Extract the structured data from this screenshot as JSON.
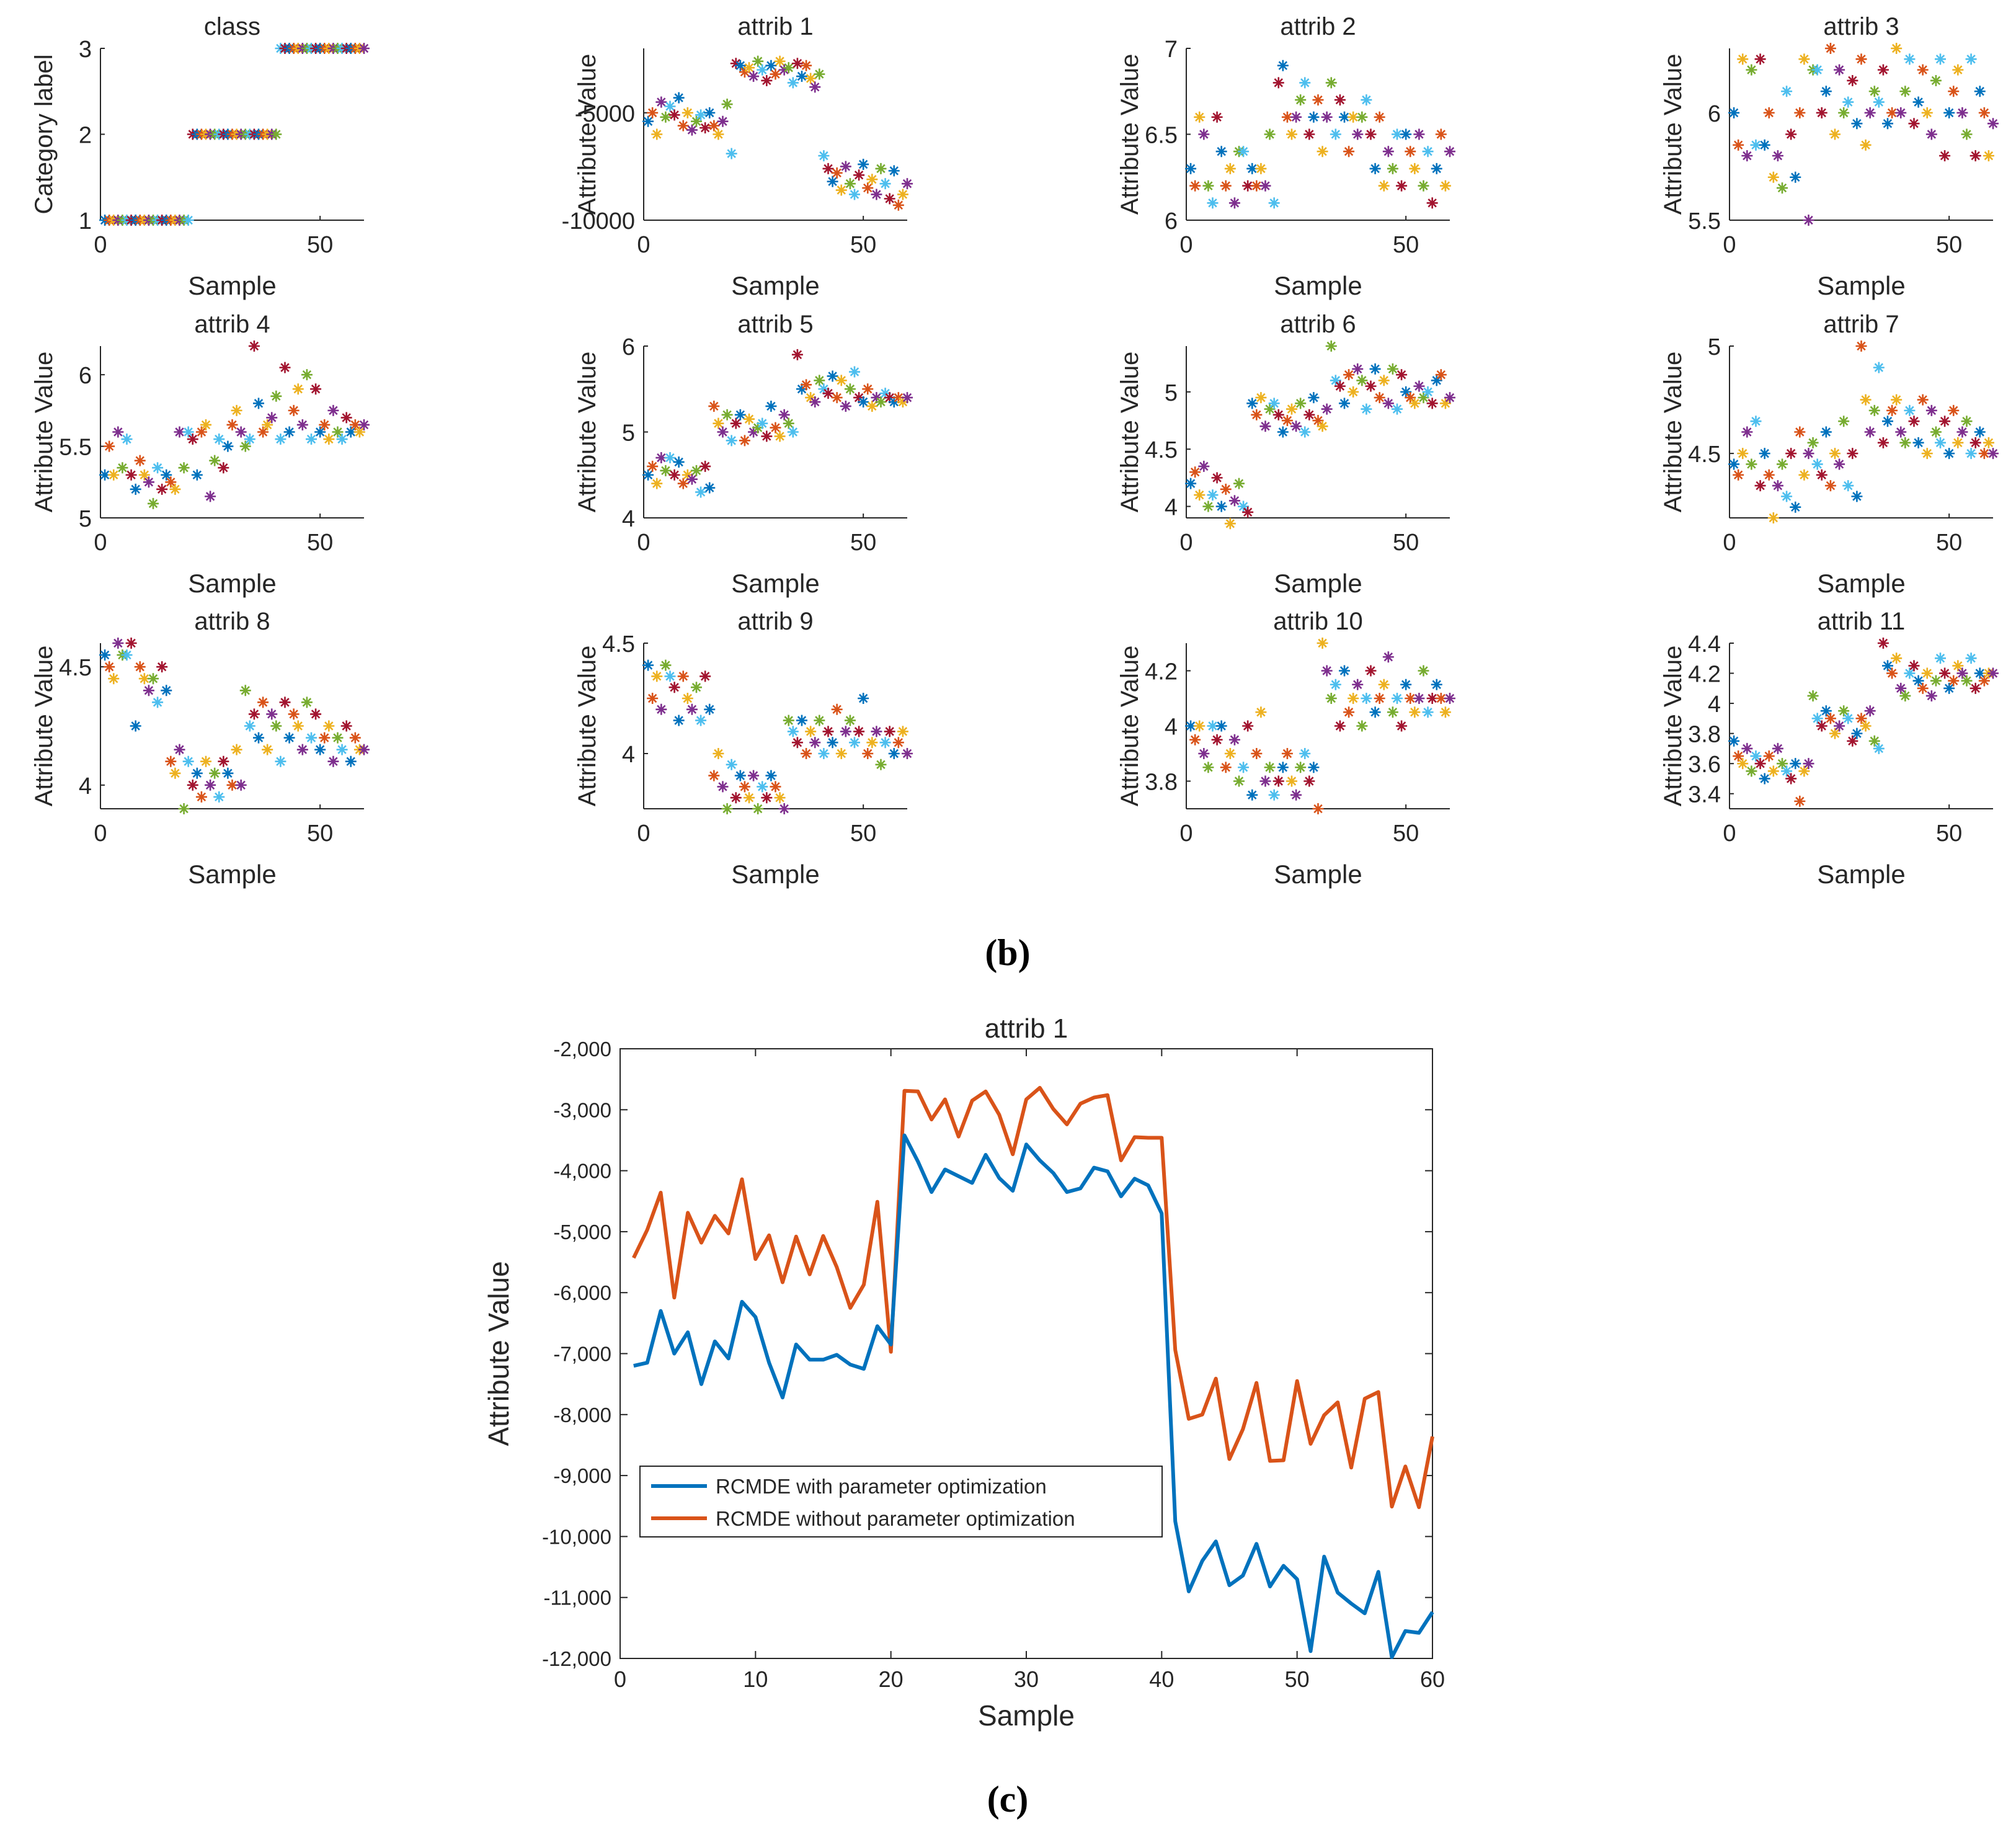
{
  "figure_labels": {
    "b": "(b)",
    "c": "(c)"
  },
  "colors": {
    "matlab": [
      "#0072BD",
      "#D95319",
      "#EDB120",
      "#7E2F8E",
      "#77AC30",
      "#4DBEEE",
      "#A2142F"
    ],
    "axis": "#262626",
    "line_opt": "#0072BD",
    "line_noopt": "#D95319"
  },
  "chart_data": [
    {
      "type": "scatter",
      "title": "class",
      "xlabel": "Sample",
      "ylabel": "Category label",
      "xlim": [
        0,
        60
      ],
      "ylim": [
        1,
        3
      ],
      "xticks": [
        0,
        50
      ],
      "yticks": [
        1,
        2,
        3
      ],
      "ytick_labels": [
        "1",
        "2",
        "3"
      ],
      "marker": "*",
      "x": "1..60",
      "values": [
        1,
        1,
        1,
        1,
        1,
        1,
        1,
        1,
        1,
        1,
        1,
        1,
        1,
        1,
        1,
        1,
        1,
        1,
        1,
        1,
        2,
        2,
        2,
        2,
        2,
        2,
        2,
        2,
        2,
        2,
        2,
        2,
        2,
        2,
        2,
        2,
        2,
        2,
        2,
        2,
        3,
        3,
        3,
        3,
        3,
        3,
        3,
        3,
        3,
        3,
        3,
        3,
        3,
        3,
        3,
        3,
        3,
        3,
        3,
        3
      ]
    },
    {
      "type": "scatter",
      "title": "attrib 1",
      "xlabel": "Sample",
      "ylabel": "Attribute Value",
      "xlim": [
        0,
        60
      ],
      "ylim": [
        -10000,
        -2000
      ],
      "xticks": [
        0,
        50
      ],
      "yticks": [
        -10000,
        -5000
      ],
      "ytick_labels": [
        "-10000",
        "-5000"
      ],
      "marker": "*",
      "x": "1..60",
      "values": [
        -5400,
        -5000,
        -6000,
        -4500,
        -5200,
        -4700,
        -5100,
        -4300,
        -5600,
        -5000,
        -5800,
        -5400,
        -5100,
        -5700,
        -5000,
        -5600,
        -6000,
        -5400,
        -4600,
        -6900,
        -2700,
        -2800,
        -3100,
        -2900,
        -3300,
        -2600,
        -3000,
        -3500,
        -2800,
        -3200,
        -2600,
        -3000,
        -2900,
        -3600,
        -2700,
        -3300,
        -2800,
        -3400,
        -3800,
        -3200,
        -7000,
        -7600,
        -8200,
        -7800,
        -8600,
        -7500,
        -8300,
        -8800,
        -7900,
        -7400,
        -8500,
        -8100,
        -8800,
        -7600,
        -8300,
        -9000,
        -7700,
        -9300,
        -8800,
        -8300
      ]
    },
    {
      "type": "scatter",
      "title": "attrib 2",
      "xlabel": "Sample",
      "ylabel": "Attribute Value",
      "xlim": [
        0,
        60
      ],
      "ylim": [
        6,
        7
      ],
      "xticks": [
        0,
        50
      ],
      "yticks": [
        6,
        6.5,
        7
      ],
      "ytick_labels": [
        "6",
        "6.5",
        "7"
      ],
      "marker": "*",
      "x": "1..60",
      "values": [
        6.3,
        6.2,
        6.6,
        6.5,
        6.2,
        6.1,
        6.6,
        6.4,
        6.2,
        6.3,
        6.1,
        6.4,
        6.4,
        6.2,
        6.3,
        6.2,
        6.3,
        6.2,
        6.5,
        6.1,
        6.8,
        6.9,
        6.6,
        6.5,
        6.6,
        6.7,
        6.8,
        6.5,
        6.6,
        6.7,
        6.4,
        6.6,
        6.8,
        6.5,
        6.7,
        6.6,
        6.4,
        6.6,
        6.5,
        6.6,
        6.7,
        6.5,
        6.3,
        6.6,
        6.2,
        6.4,
        6.3,
        6.5,
        6.2,
        6.5,
        6.4,
        6.3,
        6.5,
        6.2,
        6.4,
        6.1,
        6.3,
        6.5,
        6.2,
        6.4
      ]
    },
    {
      "type": "scatter",
      "title": "attrib 3",
      "xlabel": "Sample",
      "ylabel": "Attribute Value",
      "xlim": [
        0,
        60
      ],
      "ylim": [
        5.5,
        6.3
      ],
      "xticks": [
        0,
        50
      ],
      "yticks": [
        5.5,
        6
      ],
      "ytick_labels": [
        "5.5",
        "6"
      ],
      "marker": "*",
      "x": "1..60",
      "values": [
        6.0,
        5.85,
        6.25,
        5.8,
        6.2,
        5.85,
        6.25,
        5.85,
        6.0,
        5.7,
        5.8,
        5.65,
        6.1,
        5.9,
        5.7,
        6.0,
        6.25,
        5.5,
        6.2,
        6.2,
        6.0,
        6.1,
        6.3,
        5.9,
        6.2,
        6.0,
        6.05,
        6.15,
        5.95,
        6.25,
        5.85,
        6.0,
        6.1,
        6.05,
        6.2,
        5.95,
        6.0,
        6.3,
        6.0,
        6.1,
        6.25,
        5.95,
        6.05,
        6.2,
        6.0,
        5.9,
        6.15,
        6.25,
        5.8,
        6.0,
        6.1,
        6.2,
        6.0,
        5.9,
        6.25,
        5.8,
        6.1,
        6.0,
        5.8,
        5.95
      ]
    },
    {
      "type": "scatter",
      "title": "attrib 4",
      "xlabel": "Sample",
      "ylabel": "Attribute Value",
      "xlim": [
        0,
        60
      ],
      "ylim": [
        5,
        6.2
      ],
      "xticks": [
        0,
        50
      ],
      "yticks": [
        5,
        5.5,
        6
      ],
      "ytick_labels": [
        "5",
        "5.5",
        "6"
      ],
      "marker": "*",
      "x": "1..60",
      "values": [
        5.3,
        5.5,
        5.3,
        5.6,
        5.35,
        5.55,
        5.3,
        5.2,
        5.4,
        5.3,
        5.25,
        5.1,
        5.35,
        5.2,
        5.3,
        5.25,
        5.2,
        5.6,
        5.35,
        5.6,
        5.55,
        5.3,
        5.6,
        5.65,
        5.15,
        5.4,
        5.55,
        5.35,
        5.5,
        5.65,
        5.75,
        5.6,
        5.5,
        5.55,
        6.2,
        5.8,
        5.6,
        5.65,
        5.7,
        5.85,
        5.55,
        6.05,
        5.6,
        5.75,
        5.9,
        5.65,
        6.0,
        5.55,
        5.9,
        5.6,
        5.65,
        5.55,
        5.75,
        5.6,
        5.55,
        5.7,
        5.6,
        5.65,
        5.6,
        5.65
      ]
    },
    {
      "type": "scatter",
      "title": "attrib 5",
      "xlabel": "Sample",
      "ylabel": "Attribute Value",
      "xlim": [
        0,
        60
      ],
      "ylim": [
        4,
        6
      ],
      "xticks": [
        0,
        50
      ],
      "yticks": [
        4,
        5,
        6
      ],
      "ytick_labels": [
        "4",
        "5",
        "6"
      ],
      "marker": "*",
      "x": "1..60",
      "values": [
        4.5,
        4.6,
        4.4,
        4.7,
        4.55,
        4.7,
        4.5,
        4.65,
        4.4,
        4.5,
        4.45,
        4.55,
        4.3,
        4.6,
        4.35,
        5.3,
        5.1,
        5.0,
        5.2,
        4.9,
        5.1,
        5.2,
        4.9,
        5.15,
        5.0,
        5.05,
        5.1,
        4.95,
        5.3,
        5.05,
        4.95,
        5.2,
        5.1,
        5.0,
        5.9,
        5.5,
        5.55,
        5.4,
        5.35,
        5.6,
        5.5,
        5.45,
        5.65,
        5.4,
        5.6,
        5.3,
        5.5,
        5.7,
        5.4,
        5.35,
        5.5,
        5.3,
        5.4,
        5.35,
        5.45,
        5.4,
        5.35,
        5.4,
        5.35,
        5.4
      ]
    },
    {
      "type": "scatter",
      "title": "attrib 6",
      "xlabel": "Sample",
      "ylabel": "Attribute Value",
      "xlim": [
        0,
        60
      ],
      "ylim": [
        3.9,
        5.4
      ],
      "xticks": [
        0,
        50
      ],
      "yticks": [
        4,
        4.5,
        5
      ],
      "ytick_labels": [
        "4",
        "4.5",
        "5"
      ],
      "marker": "*",
      "x": "1..60",
      "values": [
        4.2,
        4.3,
        4.1,
        4.35,
        4.0,
        4.1,
        4.25,
        4.0,
        4.15,
        3.85,
        4.05,
        4.2,
        4.0,
        3.95,
        4.9,
        4.8,
        4.95,
        4.7,
        4.85,
        4.9,
        4.8,
        4.65,
        4.75,
        4.85,
        4.7,
        4.9,
        4.65,
        4.8,
        4.95,
        4.75,
        4.7,
        4.85,
        5.4,
        5.1,
        5.05,
        4.9,
        5.15,
        5.0,
        5.2,
        5.1,
        4.85,
        5.05,
        5.2,
        4.95,
        5.1,
        4.9,
        5.2,
        4.85,
        5.15,
        5.0,
        4.95,
        4.9,
        5.05,
        4.95,
        5.0,
        4.9,
        5.1,
        5.15,
        4.9,
        4.95
      ]
    },
    {
      "type": "scatter",
      "title": "attrib 7",
      "xlabel": "Sample",
      "ylabel": "Attribute Value",
      "xlim": [
        0,
        60
      ],
      "ylim": [
        4.2,
        5.0
      ],
      "xticks": [
        0,
        50
      ],
      "yticks": [
        4.5,
        5
      ],
      "ytick_labels": [
        "4.5",
        "5"
      ],
      "marker": "*",
      "x": "1..60",
      "values": [
        4.45,
        4.4,
        4.5,
        4.6,
        4.45,
        4.65,
        4.35,
        4.5,
        4.4,
        4.2,
        4.35,
        4.45,
        4.3,
        4.5,
        4.25,
        4.6,
        4.4,
        4.5,
        4.55,
        4.45,
        4.4,
        4.6,
        4.35,
        4.5,
        4.45,
        4.65,
        4.35,
        4.5,
        4.3,
        5.0,
        4.75,
        4.6,
        4.7,
        4.9,
        4.55,
        4.65,
        4.7,
        4.75,
        4.6,
        4.55,
        4.7,
        4.65,
        4.55,
        4.75,
        4.5,
        4.7,
        4.6,
        4.55,
        4.65,
        4.5,
        4.7,
        4.55,
        4.6,
        4.65,
        4.5,
        4.55,
        4.6,
        4.5,
        4.55,
        4.5
      ]
    },
    {
      "type": "scatter",
      "title": "attrib 8",
      "xlabel": "Sample",
      "ylabel": "Attribute Value",
      "xlim": [
        0,
        60
      ],
      "ylim": [
        3.9,
        4.6
      ],
      "xticks": [
        0,
        50
      ],
      "yticks": [
        4,
        4.5
      ],
      "ytick_labels": [
        "4",
        "4.5"
      ],
      "marker": "*",
      "x": "1..60",
      "values": [
        4.55,
        4.5,
        4.45,
        4.6,
        4.55,
        4.55,
        4.6,
        4.25,
        4.5,
        4.45,
        4.4,
        4.45,
        4.35,
        4.5,
        4.4,
        4.1,
        4.05,
        4.15,
        3.9,
        4.1,
        4.0,
        4.05,
        3.95,
        4.1,
        4.0,
        4.05,
        3.95,
        4.1,
        4.05,
        4.0,
        4.15,
        4.0,
        4.4,
        4.25,
        4.3,
        4.2,
        4.35,
        4.15,
        4.3,
        4.25,
        4.1,
        4.35,
        4.2,
        4.3,
        4.25,
        4.15,
        4.35,
        4.2,
        4.3,
        4.15,
        4.2,
        4.25,
        4.1,
        4.2,
        4.15,
        4.25,
        4.1,
        4.2,
        4.15,
        4.15
      ]
    },
    {
      "type": "scatter",
      "title": "attrib 9",
      "xlabel": "Sample",
      "ylabel": "Attribute Value",
      "xlim": [
        0,
        60
      ],
      "ylim": [
        3.75,
        4.5
      ],
      "xticks": [
        0,
        50
      ],
      "yticks": [
        4,
        4.5
      ],
      "ytick_labels": [
        "4",
        "4.5"
      ],
      "marker": "*",
      "x": "1..60",
      "values": [
        4.4,
        4.25,
        4.35,
        4.2,
        4.4,
        4.35,
        4.3,
        4.15,
        4.35,
        4.25,
        4.2,
        4.3,
        4.15,
        4.35,
        4.2,
        3.9,
        4.0,
        3.85,
        3.75,
        3.95,
        3.8,
        3.9,
        3.85,
        3.8,
        3.9,
        3.75,
        3.85,
        3.8,
        3.9,
        3.85,
        3.8,
        3.75,
        4.15,
        4.1,
        4.05,
        4.15,
        4.0,
        4.1,
        4.05,
        4.15,
        4.0,
        4.1,
        4.05,
        4.2,
        4.0,
        4.1,
        4.15,
        4.05,
        4.1,
        4.25,
        4.0,
        4.05,
        4.1,
        3.95,
        4.05,
        4.1,
        4.0,
        4.05,
        4.1,
        4.0
      ]
    },
    {
      "type": "scatter",
      "title": "attrib 10",
      "xlabel": "Sample",
      "ylabel": "Attribute Value",
      "xlim": [
        0,
        60
      ],
      "ylim": [
        3.7,
        4.3
      ],
      "xticks": [
        0,
        50
      ],
      "yticks": [
        3.8,
        4,
        4.2
      ],
      "ytick_labels": [
        "3.8",
        "4",
        "4.2"
      ],
      "marker": "*",
      "x": "1..60",
      "values": [
        4.0,
        3.95,
        4.0,
        3.9,
        3.85,
        4.0,
        3.95,
        4.0,
        3.85,
        3.9,
        3.95,
        3.8,
        3.85,
        4.0,
        3.75,
        3.9,
        4.05,
        3.8,
        3.85,
        3.75,
        3.8,
        3.85,
        3.9,
        3.8,
        3.75,
        3.85,
        3.9,
        3.8,
        3.85,
        3.7,
        4.3,
        4.2,
        4.1,
        4.15,
        4.0,
        4.2,
        4.05,
        4.1,
        4.15,
        4.0,
        4.1,
        4.2,
        4.05,
        4.1,
        4.15,
        4.25,
        4.05,
        4.1,
        4.0,
        4.15,
        4.1,
        4.05,
        4.1,
        4.2,
        4.05,
        4.1,
        4.15,
        4.1,
        4.05,
        4.1
      ]
    },
    {
      "type": "scatter",
      "title": "attrib 11",
      "xlabel": "Sample",
      "ylabel": "Attribute Value",
      "xlim": [
        0,
        60
      ],
      "ylim": [
        3.3,
        4.4
      ],
      "xticks": [
        0,
        50
      ],
      "yticks": [
        3.4,
        3.6,
        3.8,
        4,
        4.2,
        4.4
      ],
      "ytick_labels": [
        "3.4",
        "3.6",
        "3.8",
        "4",
        "4.2",
        "4.4"
      ],
      "marker": "*",
      "x": "1..60",
      "values": [
        3.75,
        3.65,
        3.6,
        3.7,
        3.55,
        3.65,
        3.6,
        3.5,
        3.65,
        3.55,
        3.7,
        3.6,
        3.55,
        3.5,
        3.6,
        3.35,
        3.55,
        3.6,
        4.05,
        3.9,
        3.85,
        3.95,
        3.9,
        3.8,
        3.85,
        3.95,
        3.9,
        3.75,
        3.8,
        3.9,
        3.85,
        3.95,
        3.75,
        3.7,
        4.4,
        4.25,
        4.2,
        4.3,
        4.1,
        4.05,
        4.2,
        4.25,
        4.15,
        4.1,
        4.2,
        4.05,
        4.15,
        4.3,
        4.2,
        4.1,
        4.15,
        4.25,
        4.2,
        4.15,
        4.3,
        4.1,
        4.2,
        4.15,
        4.2,
        4.2
      ]
    },
    {
      "type": "line",
      "title": "attrib 1",
      "xlabel": "Sample",
      "ylabel": "Attribute Value",
      "xlim": [
        0,
        60
      ],
      "ylim": [
        -12000,
        -2000
      ],
      "xticks": [
        0,
        10,
        20,
        30,
        40,
        50,
        60
      ],
      "xtick_labels": [
        "0",
        "10",
        "20",
        "30",
        "40",
        "50",
        "60"
      ],
      "yticks": [
        -12000,
        -11000,
        -10000,
        -9000,
        -8000,
        -7000,
        -6000,
        -5000,
        -4000,
        -3000,
        -2000
      ],
      "ytick_labels": [
        "-12,000",
        "-11,000",
        "-10,000",
        "-9,000",
        "-8,000",
        "-7,000",
        "-6,000",
        "-5,000",
        "-4,000",
        "-3,000",
        "-2,000"
      ],
      "legend": "bottom-left",
      "x": [
        1,
        2,
        3,
        4,
        5,
        6,
        7,
        8,
        9,
        10,
        11,
        12,
        13,
        14,
        15,
        16,
        17,
        18,
        19,
        20,
        21,
        22,
        23,
        24,
        25,
        26,
        27,
        28,
        29,
        30,
        31,
        32,
        33,
        34,
        35,
        36,
        37,
        38,
        39,
        40,
        41,
        42,
        43,
        44,
        45,
        46,
        47,
        48,
        49,
        50,
        51,
        52,
        53,
        54,
        55,
        56,
        57,
        58,
        59,
        60
      ],
      "series": [
        {
          "name": "RCMDE with parameter optimization",
          "values": [
            -7200,
            -7150,
            -6300,
            -7000,
            -6650,
            -7500,
            -6800,
            -7080,
            -6150,
            -6400,
            -7150,
            -7720,
            -6850,
            -7100,
            -7100,
            -7020,
            -7180,
            -7250,
            -6550,
            -6850,
            -3420,
            -3850,
            -4350,
            -3980,
            -4090,
            -4200,
            -3740,
            -4120,
            -4330,
            -3570,
            -3830,
            -4040,
            -4350,
            -4290,
            -3950,
            -4010,
            -4420,
            -4130,
            -4240,
            -4700,
            -9750,
            -10900,
            -10400,
            -10080,
            -10800,
            -10640,
            -10120,
            -10820,
            -10480,
            -10700,
            -11880,
            -10330,
            -10920,
            -11100,
            -11260,
            -10580,
            -11980,
            -11550,
            -11580,
            -11240
          ]
        },
        {
          "name": "RCMDE without parameter optimization",
          "values": [
            -5430,
            -4970,
            -4360,
            -6080,
            -4690,
            -5180,
            -4740,
            -5030,
            -4140,
            -5450,
            -5060,
            -5830,
            -5080,
            -5700,
            -5070,
            -5580,
            -6250,
            -5870,
            -4510,
            -6970,
            -2690,
            -2700,
            -3160,
            -2830,
            -3440,
            -2850,
            -2700,
            -3080,
            -3730,
            -2830,
            -2640,
            -2990,
            -3240,
            -2900,
            -2800,
            -2760,
            -3830,
            -3450,
            -3460,
            -3460,
            -6940,
            -8070,
            -8000,
            -7410,
            -8730,
            -8240,
            -7480,
            -8760,
            -8750,
            -7450,
            -8480,
            -8010,
            -7800,
            -8870,
            -7740,
            -7630,
            -9510,
            -8850,
            -9520,
            -8360
          ]
        }
      ]
    }
  ]
}
